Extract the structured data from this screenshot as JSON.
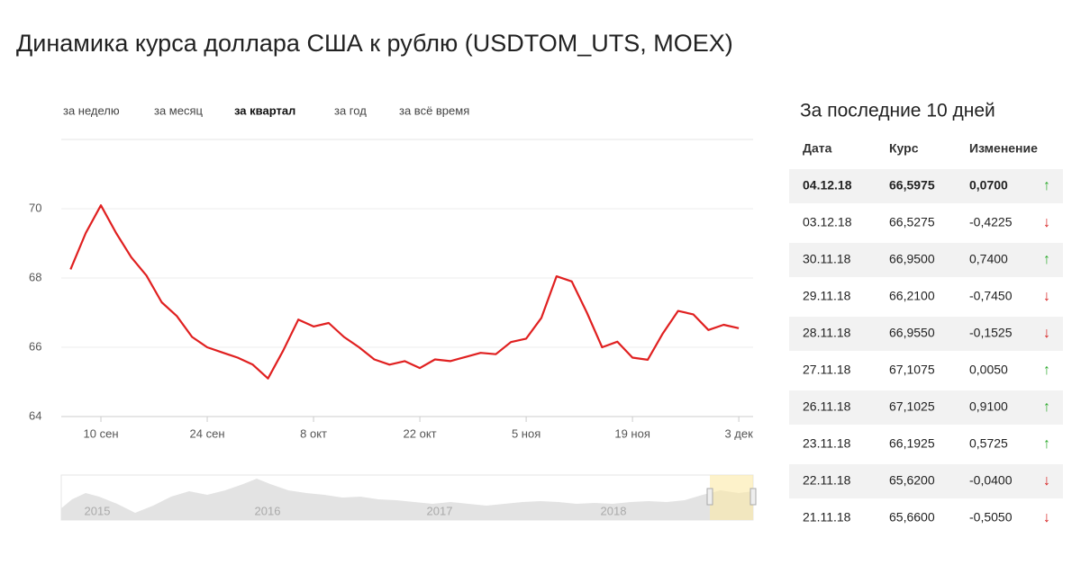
{
  "header": {
    "title": "Динамика курса доллара США к рублю (USDTOM_UTS, MOEX)"
  },
  "tabs": {
    "items": [
      "за неделю",
      "за месяц",
      "за квартал",
      "за год",
      "за всё время"
    ],
    "active": 2
  },
  "chart_data": {
    "type": "line",
    "color": "#e02020",
    "categories": [
      null,
      null,
      "10 сен",
      null,
      null,
      null,
      null,
      null,
      null,
      "24 сен",
      null,
      null,
      null,
      null,
      null,
      null,
      "8 окт",
      null,
      null,
      null,
      null,
      null,
      null,
      "22 окт",
      null,
      null,
      null,
      null,
      null,
      null,
      "5 ноя",
      null,
      null,
      null,
      null,
      null,
      null,
      "19 ноя",
      null,
      null,
      null,
      null,
      null,
      null,
      "3 дек"
    ],
    "values": [
      68.25,
      69.3,
      70.1,
      69.3,
      68.6,
      68.07,
      67.3,
      66.9,
      66.3,
      66.0,
      65.85,
      65.7,
      65.5,
      65.1,
      65.9,
      66.8,
      66.6,
      66.7,
      66.3,
      66.0,
      65.65,
      65.5,
      65.6,
      65.4,
      65.65,
      65.6,
      65.72,
      65.84,
      65.8,
      66.15,
      66.25,
      66.85,
      68.05,
      67.9,
      67.0,
      66.0,
      66.16,
      65.7,
      65.64,
      66.4,
      67.05,
      66.95,
      66.5,
      66.65,
      66.55
    ],
    "ylim": [
      64,
      72
    ],
    "yticks": [
      64,
      66,
      68,
      70
    ],
    "grid": true
  },
  "navigator": {
    "labels": [
      "2015",
      "2016",
      "2017",
      "2018"
    ]
  },
  "table": {
    "title": "За последние 10 дней",
    "header": [
      "Дата",
      "Курс",
      "Изменение"
    ],
    "rows": [
      [
        "04.12.18",
        "66,5975",
        "0,0700",
        "↑"
      ],
      [
        "03.12.18",
        "66,5275",
        "-0,4225",
        "↓"
      ],
      [
        "30.11.18",
        "66,9500",
        "0,7400",
        "↑"
      ],
      [
        "29.11.18",
        "66,2100",
        "-0,7450",
        "↓"
      ],
      [
        "28.11.18",
        "66,9550",
        "-0,1525",
        "↓"
      ],
      [
        "27.11.18",
        "67,1075",
        "0,0050",
        "↑"
      ],
      [
        "26.11.18",
        "67,1025",
        "0,9100",
        "↑"
      ],
      [
        "23.11.18",
        "66,1925",
        "0,5725",
        "↑"
      ],
      [
        "22.11.18",
        "65,6200",
        "-0,0400",
        "↓"
      ],
      [
        "21.11.18",
        "65,6600",
        "-0,5050",
        "↓"
      ]
    ]
  }
}
